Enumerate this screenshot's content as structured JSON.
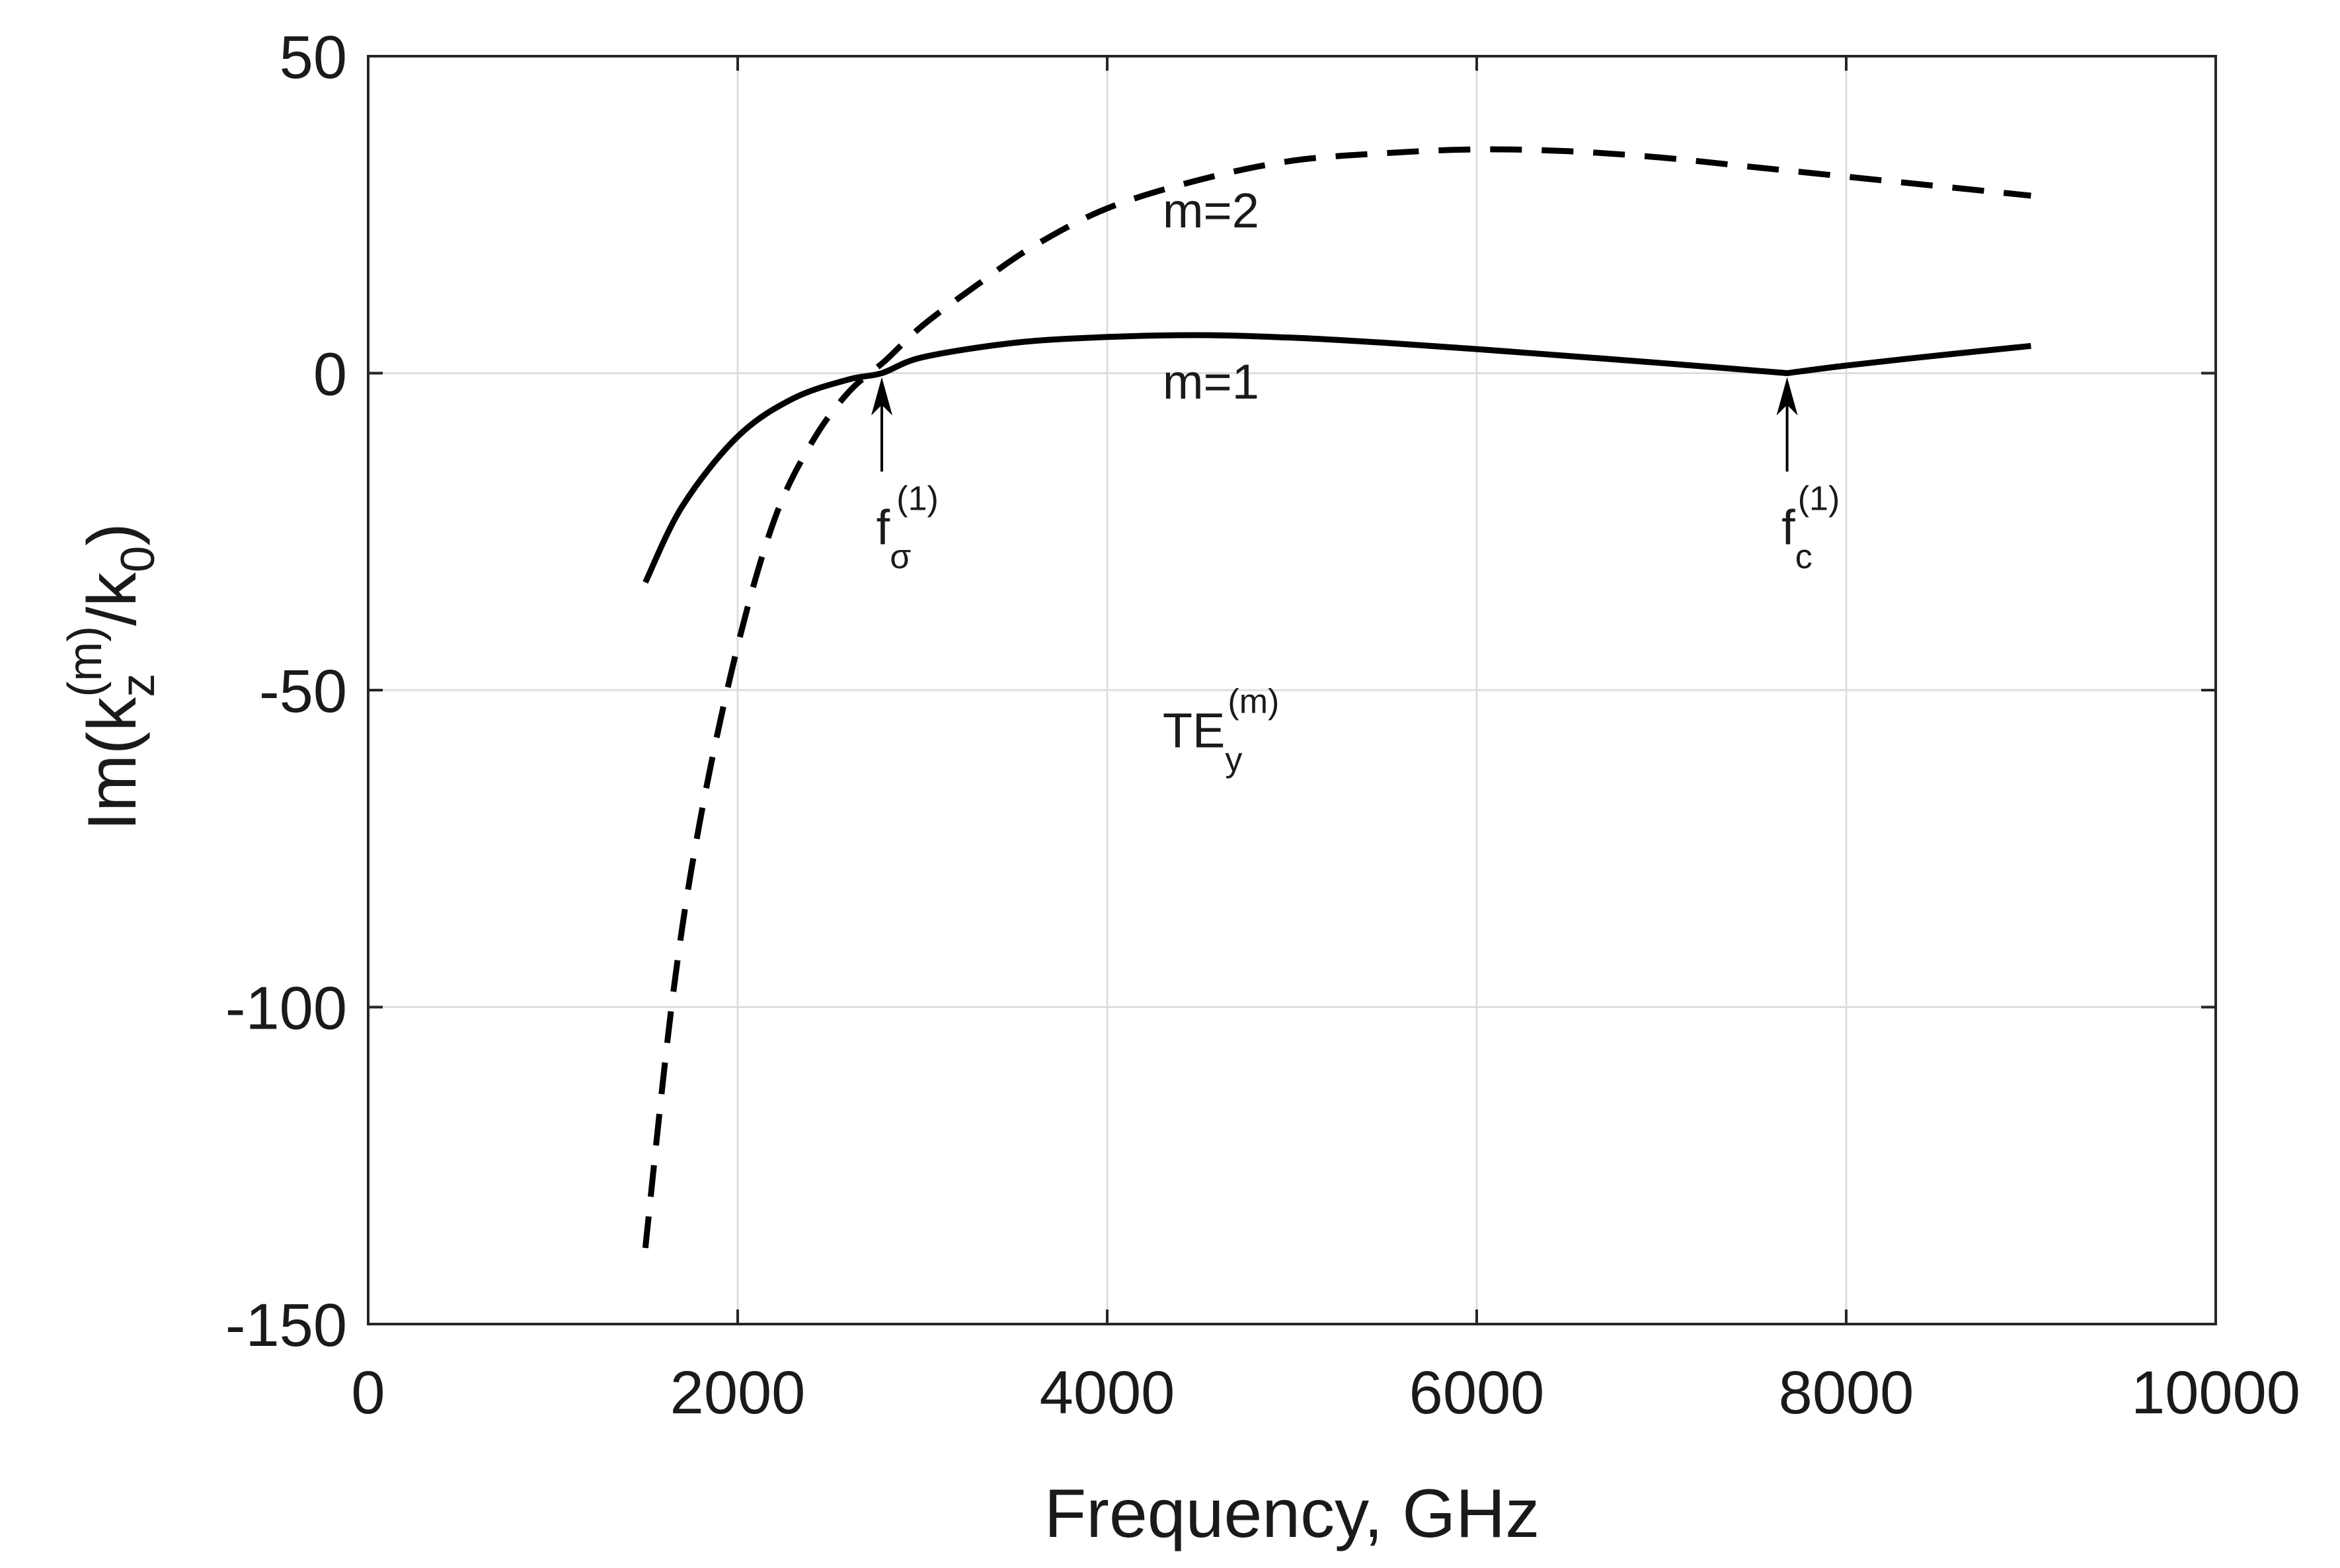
{
  "chart_data": {
    "type": "line",
    "title": "",
    "xlabel": "Frequency, GHz",
    "ylabel": {
      "base": "Im(k",
      "sub": "z",
      "sup": "(m)",
      "mid": "/k",
      "sub2": "0",
      "end": ")"
    },
    "xlim": [
      0,
      10000
    ],
    "ylim": [
      -150,
      50
    ],
    "grid": true,
    "x_ticks": [
      0,
      2000,
      4000,
      6000,
      8000,
      10000
    ],
    "x_tick_labels": [
      "0",
      "2000",
      "4000",
      "6000",
      "8000",
      "10000"
    ],
    "y_ticks": [
      50,
      0,
      -50,
      -100,
      -150
    ],
    "y_tick_labels": [
      "50",
      "0",
      "-50",
      "-100",
      "-150"
    ],
    "series": [
      {
        "name": "m=1",
        "style": "solid",
        "x": [
          1500,
          1700,
          2000,
          2300,
          2600,
          2780,
          3000,
          3500,
          4000,
          4500,
          5000,
          5500,
          6000,
          6500,
          7000,
          7680,
          8000,
          8500,
          9000
        ],
        "y": [
          -33,
          -21,
          -10,
          -4,
          -1,
          0,
          2.5,
          4.8,
          5.7,
          6,
          5.6,
          4.8,
          3.8,
          2.7,
          1.6,
          0,
          1.2,
          2.8,
          4.3
        ]
      },
      {
        "name": "m=2",
        "style": "dashed",
        "x": [
          1500,
          1650,
          1800,
          2000,
          2200,
          2400,
          2600,
          2800,
          3000,
          3300,
          3600,
          4000,
          4500,
          5000,
          5500,
          6000,
          6500,
          7000,
          7500,
          8000,
          8500,
          9000
        ],
        "y": [
          -138,
          -98,
          -70,
          -43,
          -23,
          -11,
          -3,
          2,
          7.5,
          14,
          20,
          26,
          30.5,
          33.5,
          34.7,
          35.3,
          35,
          34,
          32.5,
          31,
          29.5,
          28
        ]
      }
    ],
    "annotations": [
      {
        "text": "m=2",
        "x": 4300,
        "y": 23
      },
      {
        "text": "m=1",
        "x": 4300,
        "y": -4
      },
      {
        "text_base": "f",
        "sub": "σ",
        "sup": "(1)",
        "x": 2750,
        "y": -27,
        "arrow_to_x": 2780,
        "arrow_to_y": 0
      },
      {
        "text_base": "f",
        "sub": "c",
        "sup": "(1)",
        "x": 7650,
        "y": -27,
        "arrow_to_x": 7680,
        "arrow_to_y": 0
      },
      {
        "text_base": "TE",
        "sub": "y",
        "sup": "(m)",
        "x": 4300,
        "y": -59
      }
    ]
  },
  "colors": {
    "line": "#000000",
    "grid": "#dedede",
    "axis": "#262626",
    "text": "#1a1a1a"
  }
}
